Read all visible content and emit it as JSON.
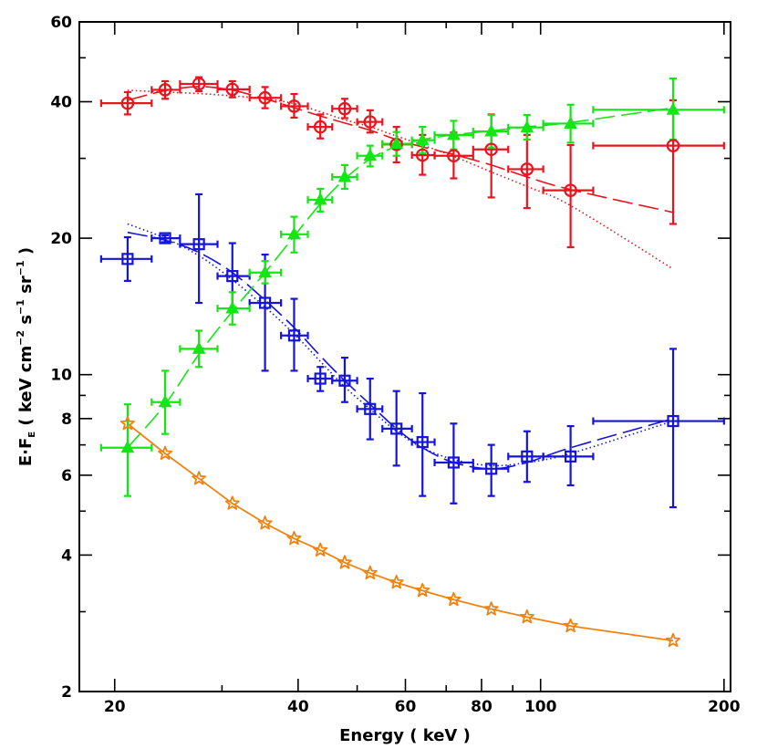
{
  "chart_data": {
    "type": "scatter",
    "xlabel": "Energy ( keV )",
    "ylabel": "E·F_E ( keV cm⁻² s⁻¹ sr⁻¹ )",
    "ylabel_parts": {
      "e": "E",
      "dot": "·",
      "f": "F",
      "sub": "E",
      "units": " ( keV cm",
      "m2": "−2",
      "s": " s",
      "m1a": "−1",
      "sr": " sr",
      "m1b": "−1",
      "close": " )"
    },
    "x_scale": "log",
    "y_scale": "log",
    "xlim": [
      17.5,
      205
    ],
    "ylim": [
      2,
      60
    ],
    "x_major_ticks": [
      20,
      40,
      60,
      80,
      100,
      200
    ],
    "x_major_labels": [
      "20",
      "40",
      "60",
      "80",
      "100",
      "200"
    ],
    "y_major_ticks": [
      2,
      4,
      6,
      8,
      10,
      20,
      40,
      60
    ],
    "y_major_labels": [
      "2",
      "4",
      "6",
      "8",
      "10",
      "20",
      "40",
      "60"
    ],
    "grid": false,
    "series": [
      {
        "color": "#e8141e",
        "marker": "circle",
        "points": [
          {
            "x": 21.0,
            "y": 39.7,
            "xlo": 19.0,
            "xhi": 23.0,
            "ylo": 37.5,
            "yhi": 42.0
          },
          {
            "x": 24.2,
            "y": 42.5,
            "xlo": 23.0,
            "xhi": 25.6,
            "ylo": 40.6,
            "yhi": 44.4
          },
          {
            "x": 27.5,
            "y": 43.8,
            "xlo": 25.6,
            "xhi": 29.5,
            "ylo": 42.2,
            "yhi": 45.3
          },
          {
            "x": 31.2,
            "y": 42.6,
            "xlo": 29.5,
            "xhi": 33.3,
            "ylo": 40.9,
            "yhi": 44.4
          },
          {
            "x": 35.3,
            "y": 40.8,
            "xlo": 33.3,
            "xhi": 37.5,
            "ylo": 38.7,
            "yhi": 43.1
          },
          {
            "x": 39.4,
            "y": 39.1,
            "xlo": 37.5,
            "xhi": 41.5,
            "ylo": 36.9,
            "yhi": 41.6
          },
          {
            "x": 43.5,
            "y": 35.2,
            "xlo": 41.5,
            "xhi": 45.5,
            "ylo": 33.2,
            "yhi": 37.5
          },
          {
            "x": 47.7,
            "y": 38.6,
            "xlo": 45.5,
            "xhi": 50.0,
            "ylo": 36.8,
            "yhi": 40.6
          },
          {
            "x": 52.5,
            "y": 36.1,
            "xlo": 50.0,
            "xhi": 55.0,
            "ylo": 34.2,
            "yhi": 38.3
          },
          {
            "x": 58.0,
            "y": 32.2,
            "xlo": 55.0,
            "xhi": 61.5,
            "ylo": 29.4,
            "yhi": 35.2
          },
          {
            "x": 64.0,
            "y": 30.5,
            "xlo": 61.5,
            "xhi": 67.0,
            "ylo": 27.6,
            "yhi": 33.8
          },
          {
            "x": 72.0,
            "y": 30.4,
            "xlo": 67.0,
            "xhi": 77.5,
            "ylo": 27.1,
            "yhi": 34.2
          },
          {
            "x": 83.0,
            "y": 31.4,
            "xlo": 77.5,
            "xhi": 88.5,
            "ylo": 24.6,
            "yhi": 37.5
          },
          {
            "x": 95.0,
            "y": 28.4,
            "xlo": 88.5,
            "xhi": 101.0,
            "ylo": 23.3,
            "yhi": 33.8
          },
          {
            "x": 112.0,
            "y": 25.5,
            "xlo": 101.0,
            "xhi": 122.0,
            "ylo": 19.1,
            "yhi": 32.1
          },
          {
            "x": 165.0,
            "y": 32.0,
            "xlo": 122.0,
            "xhi": 200.0,
            "ylo": 21.5,
            "yhi": 40.3
          }
        ],
        "model_dashed": [
          [
            21.0,
            40.3
          ],
          [
            24.2,
            42.3
          ],
          [
            27.5,
            43.2
          ],
          [
            31.2,
            42.4
          ],
          [
            35.3,
            40.6
          ],
          [
            39.4,
            38.8
          ],
          [
            43.5,
            37.2
          ],
          [
            47.7,
            35.9
          ],
          [
            52.5,
            34.6
          ],
          [
            58.0,
            33.0
          ],
          [
            64.0,
            31.8
          ],
          [
            72.0,
            30.6
          ],
          [
            83.0,
            29.0
          ],
          [
            95.0,
            27.3
          ],
          [
            112.0,
            25.6
          ],
          [
            165.0,
            22.8
          ]
        ],
        "model_dotted": [
          [
            21.0,
            42.4
          ],
          [
            24.2,
            42.0
          ],
          [
            27.5,
            41.7
          ],
          [
            31.2,
            41.2
          ],
          [
            35.3,
            40.6
          ],
          [
            39.4,
            39.6
          ],
          [
            43.5,
            38.0
          ],
          [
            47.7,
            36.5
          ],
          [
            52.5,
            35.2
          ],
          [
            58.0,
            33.6
          ],
          [
            64.0,
            32.1
          ],
          [
            72.0,
            30.3
          ],
          [
            83.0,
            28.0
          ],
          [
            95.0,
            26.0
          ],
          [
            112.0,
            23.6
          ],
          [
            165.0,
            17.1
          ]
        ]
      },
      {
        "color": "#1414dc",
        "marker": "square",
        "points": [
          {
            "x": 21.0,
            "y": 18.0,
            "xlo": 19.0,
            "xhi": 23.0,
            "ylo": 16.1,
            "yhi": 20.1
          },
          {
            "x": 24.2,
            "y": 20.0,
            "xlo": 23.0,
            "xhi": 25.6,
            "ylo": 19.6,
            "yhi": 20.3
          },
          {
            "x": 27.5,
            "y": 19.4,
            "xlo": 25.6,
            "xhi": 29.5,
            "ylo": 14.4,
            "yhi": 25.0
          },
          {
            "x": 31.2,
            "y": 16.5,
            "xlo": 29.5,
            "xhi": 33.3,
            "ylo": 13.8,
            "yhi": 19.5
          },
          {
            "x": 35.3,
            "y": 14.4,
            "xlo": 33.3,
            "xhi": 37.5,
            "ylo": 10.2,
            "yhi": 18.4
          },
          {
            "x": 39.4,
            "y": 12.2,
            "xlo": 37.5,
            "xhi": 41.5,
            "ylo": 10.2,
            "yhi": 14.7
          },
          {
            "x": 43.5,
            "y": 9.8,
            "xlo": 41.5,
            "xhi": 45.5,
            "ylo": 9.2,
            "yhi": 10.4
          },
          {
            "x": 47.7,
            "y": 9.7,
            "xlo": 45.5,
            "xhi": 50.0,
            "ylo": 8.7,
            "yhi": 10.9
          },
          {
            "x": 52.5,
            "y": 8.4,
            "xlo": 50.0,
            "xhi": 55.0,
            "ylo": 7.2,
            "yhi": 9.8
          },
          {
            "x": 58.0,
            "y": 7.6,
            "xlo": 55.0,
            "xhi": 61.5,
            "ylo": 6.3,
            "yhi": 9.2
          },
          {
            "x": 64.0,
            "y": 7.1,
            "xlo": 61.5,
            "xhi": 67.0,
            "ylo": 5.4,
            "yhi": 9.1
          },
          {
            "x": 72.0,
            "y": 6.4,
            "xlo": 67.0,
            "xhi": 77.5,
            "ylo": 5.2,
            "yhi": 7.8
          },
          {
            "x": 83.0,
            "y": 6.2,
            "xlo": 77.5,
            "xhi": 88.5,
            "ylo": 5.4,
            "yhi": 7.0
          },
          {
            "x": 95.0,
            "y": 6.6,
            "xlo": 88.5,
            "xhi": 101.0,
            "ylo": 5.8,
            "yhi": 7.5
          },
          {
            "x": 112.0,
            "y": 6.6,
            "xlo": 101.0,
            "xhi": 122.0,
            "ylo": 5.7,
            "yhi": 7.7
          },
          {
            "x": 165.0,
            "y": 7.9,
            "xlo": 122.0,
            "xhi": 200.0,
            "ylo": 5.1,
            "yhi": 11.4
          }
        ],
        "model_dashed": [
          [
            21.0,
            20.6
          ],
          [
            24.2,
            19.8
          ],
          [
            27.5,
            18.6
          ],
          [
            31.2,
            16.8
          ],
          [
            35.3,
            14.6
          ],
          [
            39.4,
            12.7
          ],
          [
            43.5,
            11.0
          ],
          [
            47.7,
            9.7
          ],
          [
            52.5,
            8.6
          ],
          [
            58.0,
            7.6
          ],
          [
            64.0,
            6.9
          ],
          [
            72.0,
            6.4
          ],
          [
            83.0,
            6.2
          ],
          [
            95.0,
            6.4
          ],
          [
            112.0,
            6.9
          ],
          [
            165.0,
            8.0
          ]
        ],
        "model_dotted": [
          [
            21.0,
            21.5
          ],
          [
            24.2,
            20.0
          ],
          [
            27.5,
            18.3
          ],
          [
            31.2,
            16.2
          ],
          [
            35.3,
            14.1
          ],
          [
            39.4,
            12.3
          ],
          [
            43.5,
            10.7
          ],
          [
            47.7,
            9.4
          ],
          [
            52.5,
            8.4
          ],
          [
            58.0,
            7.5
          ],
          [
            64.0,
            6.9
          ],
          [
            72.0,
            6.5
          ],
          [
            83.0,
            6.3
          ],
          [
            95.0,
            6.4
          ],
          [
            112.0,
            6.7
          ],
          [
            165.0,
            7.9
          ]
        ]
      },
      {
        "color": "#14e614",
        "marker": "triangle",
        "points": [
          {
            "x": 21.0,
            "y": 6.9,
            "xlo": 19.0,
            "xhi": 23.0,
            "ylo": 5.4,
            "yhi": 8.6
          },
          {
            "x": 24.2,
            "y": 8.7,
            "xlo": 23.0,
            "xhi": 25.6,
            "ylo": 7.4,
            "yhi": 10.2
          },
          {
            "x": 27.5,
            "y": 11.4,
            "xlo": 25.6,
            "xhi": 29.5,
            "ylo": 10.4,
            "yhi": 12.5
          },
          {
            "x": 31.2,
            "y": 14.0,
            "xlo": 29.5,
            "xhi": 33.3,
            "ylo": 12.9,
            "yhi": 15.2
          },
          {
            "x": 35.3,
            "y": 16.8,
            "xlo": 33.3,
            "xhi": 37.5,
            "ylo": 15.9,
            "yhi": 17.8
          },
          {
            "x": 39.4,
            "y": 20.4,
            "xlo": 37.5,
            "xhi": 41.5,
            "ylo": 18.6,
            "yhi": 22.3
          },
          {
            "x": 43.5,
            "y": 24.3,
            "xlo": 41.5,
            "xhi": 45.5,
            "ylo": 22.9,
            "yhi": 25.7
          },
          {
            "x": 47.7,
            "y": 27.3,
            "xlo": 45.5,
            "xhi": 50.0,
            "ylo": 25.7,
            "yhi": 29.0
          },
          {
            "x": 52.5,
            "y": 30.4,
            "xlo": 50.0,
            "xhi": 55.0,
            "ylo": 28.8,
            "yhi": 32.0
          },
          {
            "x": 58.0,
            "y": 32.3,
            "xlo": 55.0,
            "xhi": 61.5,
            "ylo": 30.4,
            "yhi": 34.3
          },
          {
            "x": 64.0,
            "y": 32.9,
            "xlo": 61.5,
            "xhi": 67.0,
            "ylo": 30.8,
            "yhi": 35.2
          },
          {
            "x": 72.0,
            "y": 33.8,
            "xlo": 67.0,
            "xhi": 77.5,
            "ylo": 31.4,
            "yhi": 36.3
          },
          {
            "x": 83.0,
            "y": 34.4,
            "xlo": 77.5,
            "xhi": 88.5,
            "ylo": 31.7,
            "yhi": 37.4
          },
          {
            "x": 95.0,
            "y": 35.1,
            "xlo": 88.5,
            "xhi": 101.0,
            "ylo": 33.0,
            "yhi": 37.4
          },
          {
            "x": 112.0,
            "y": 35.8,
            "xlo": 101.0,
            "xhi": 122.0,
            "ylo": 32.5,
            "yhi": 39.4
          },
          {
            "x": 165.0,
            "y": 38.4,
            "xlo": 122.0,
            "xhi": 200.0,
            "ylo": 33.0,
            "yhi": 45.0
          }
        ],
        "model_dashed": [
          [
            21.0,
            6.9
          ],
          [
            24.2,
            8.6
          ],
          [
            27.5,
            11.1
          ],
          [
            31.2,
            13.8
          ],
          [
            35.3,
            16.8
          ],
          [
            39.4,
            20.2
          ],
          [
            43.5,
            23.8
          ],
          [
            47.7,
            27.0
          ],
          [
            52.5,
            29.9
          ],
          [
            58.0,
            31.9
          ],
          [
            64.0,
            33.0
          ],
          [
            72.0,
            33.8
          ],
          [
            83.0,
            34.5
          ],
          [
            95.0,
            35.2
          ],
          [
            112.0,
            36.0
          ],
          [
            165.0,
            38.8
          ]
        ]
      },
      {
        "color": "#f0820f",
        "marker": "star",
        "points": [
          {
            "x": 21.0,
            "y": 7.8
          },
          {
            "x": 24.2,
            "y": 6.7
          },
          {
            "x": 27.5,
            "y": 5.9
          },
          {
            "x": 31.2,
            "y": 5.2
          },
          {
            "x": 35.3,
            "y": 4.7
          },
          {
            "x": 39.4,
            "y": 4.35
          },
          {
            "x": 43.5,
            "y": 4.1
          },
          {
            "x": 47.7,
            "y": 3.85
          },
          {
            "x": 52.5,
            "y": 3.65
          },
          {
            "x": 58.0,
            "y": 3.48
          },
          {
            "x": 64.0,
            "y": 3.34
          },
          {
            "x": 72.0,
            "y": 3.19
          },
          {
            "x": 83.0,
            "y": 3.04
          },
          {
            "x": 95.0,
            "y": 2.92
          },
          {
            "x": 112.0,
            "y": 2.79
          },
          {
            "x": 165.0,
            "y": 2.59
          }
        ]
      }
    ]
  }
}
